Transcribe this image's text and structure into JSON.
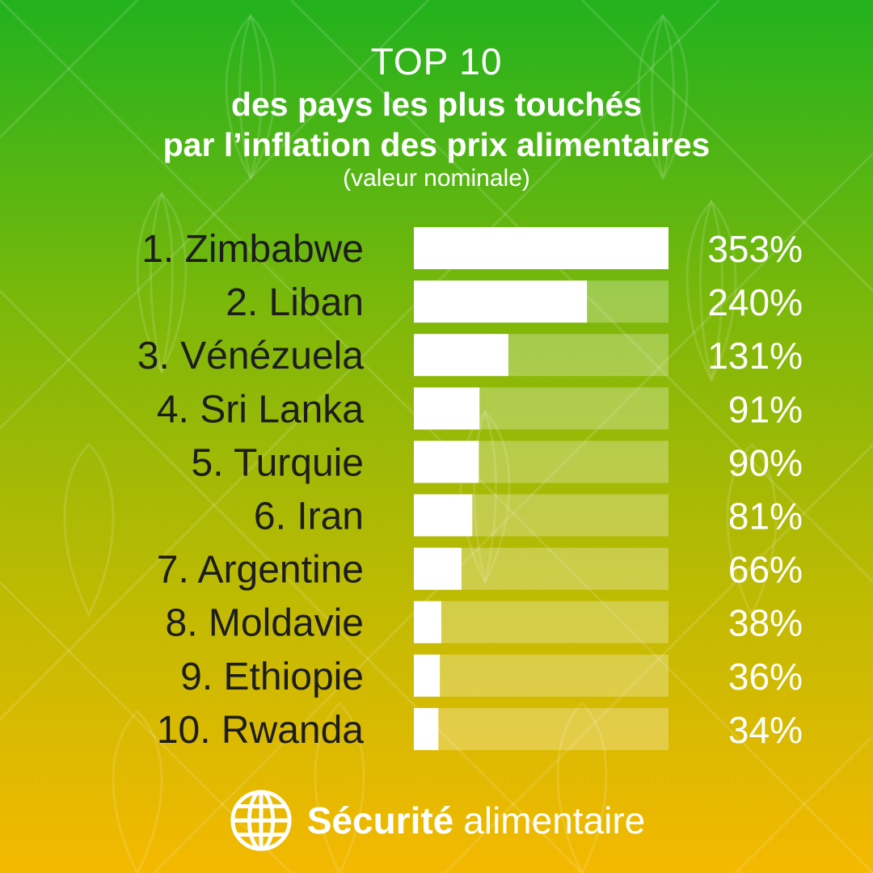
{
  "title": {
    "line1": "TOP 10",
    "line2": "des pays les plus touchés",
    "line3": "par l’inflation des prix alimentaires",
    "line4": "(valeur nominale)"
  },
  "chart_data": {
    "type": "bar",
    "orientation": "horizontal",
    "categories": [
      "1. Zimbabwe",
      "2. Liban",
      "3. Vénézuela",
      "4. Sri Lanka",
      "5. Turquie",
      "6. Iran",
      "7. Argentine",
      "8. Moldavie",
      "9. Ethiopie",
      "10. Rwanda"
    ],
    "values": [
      353,
      240,
      131,
      91,
      90,
      81,
      66,
      38,
      36,
      34
    ],
    "value_labels": [
      "353%",
      "240%",
      "131%",
      "91%",
      "90%",
      "81%",
      "66%",
      "38%",
      "36%",
      "34%"
    ],
    "xlim": [
      0,
      353
    ],
    "grid": false,
    "bar_color": "#ffffff",
    "track_color": "#ffffff"
  },
  "footer": {
    "brand_bold": "Sécurité",
    "brand_light": "alimentaire",
    "icon": "globe-icon"
  },
  "colors": {
    "gradient_top": "#22b21e",
    "gradient_bottom": "#f4b900",
    "label_text": "#1d1d1d",
    "value_text": "#ffffff"
  }
}
